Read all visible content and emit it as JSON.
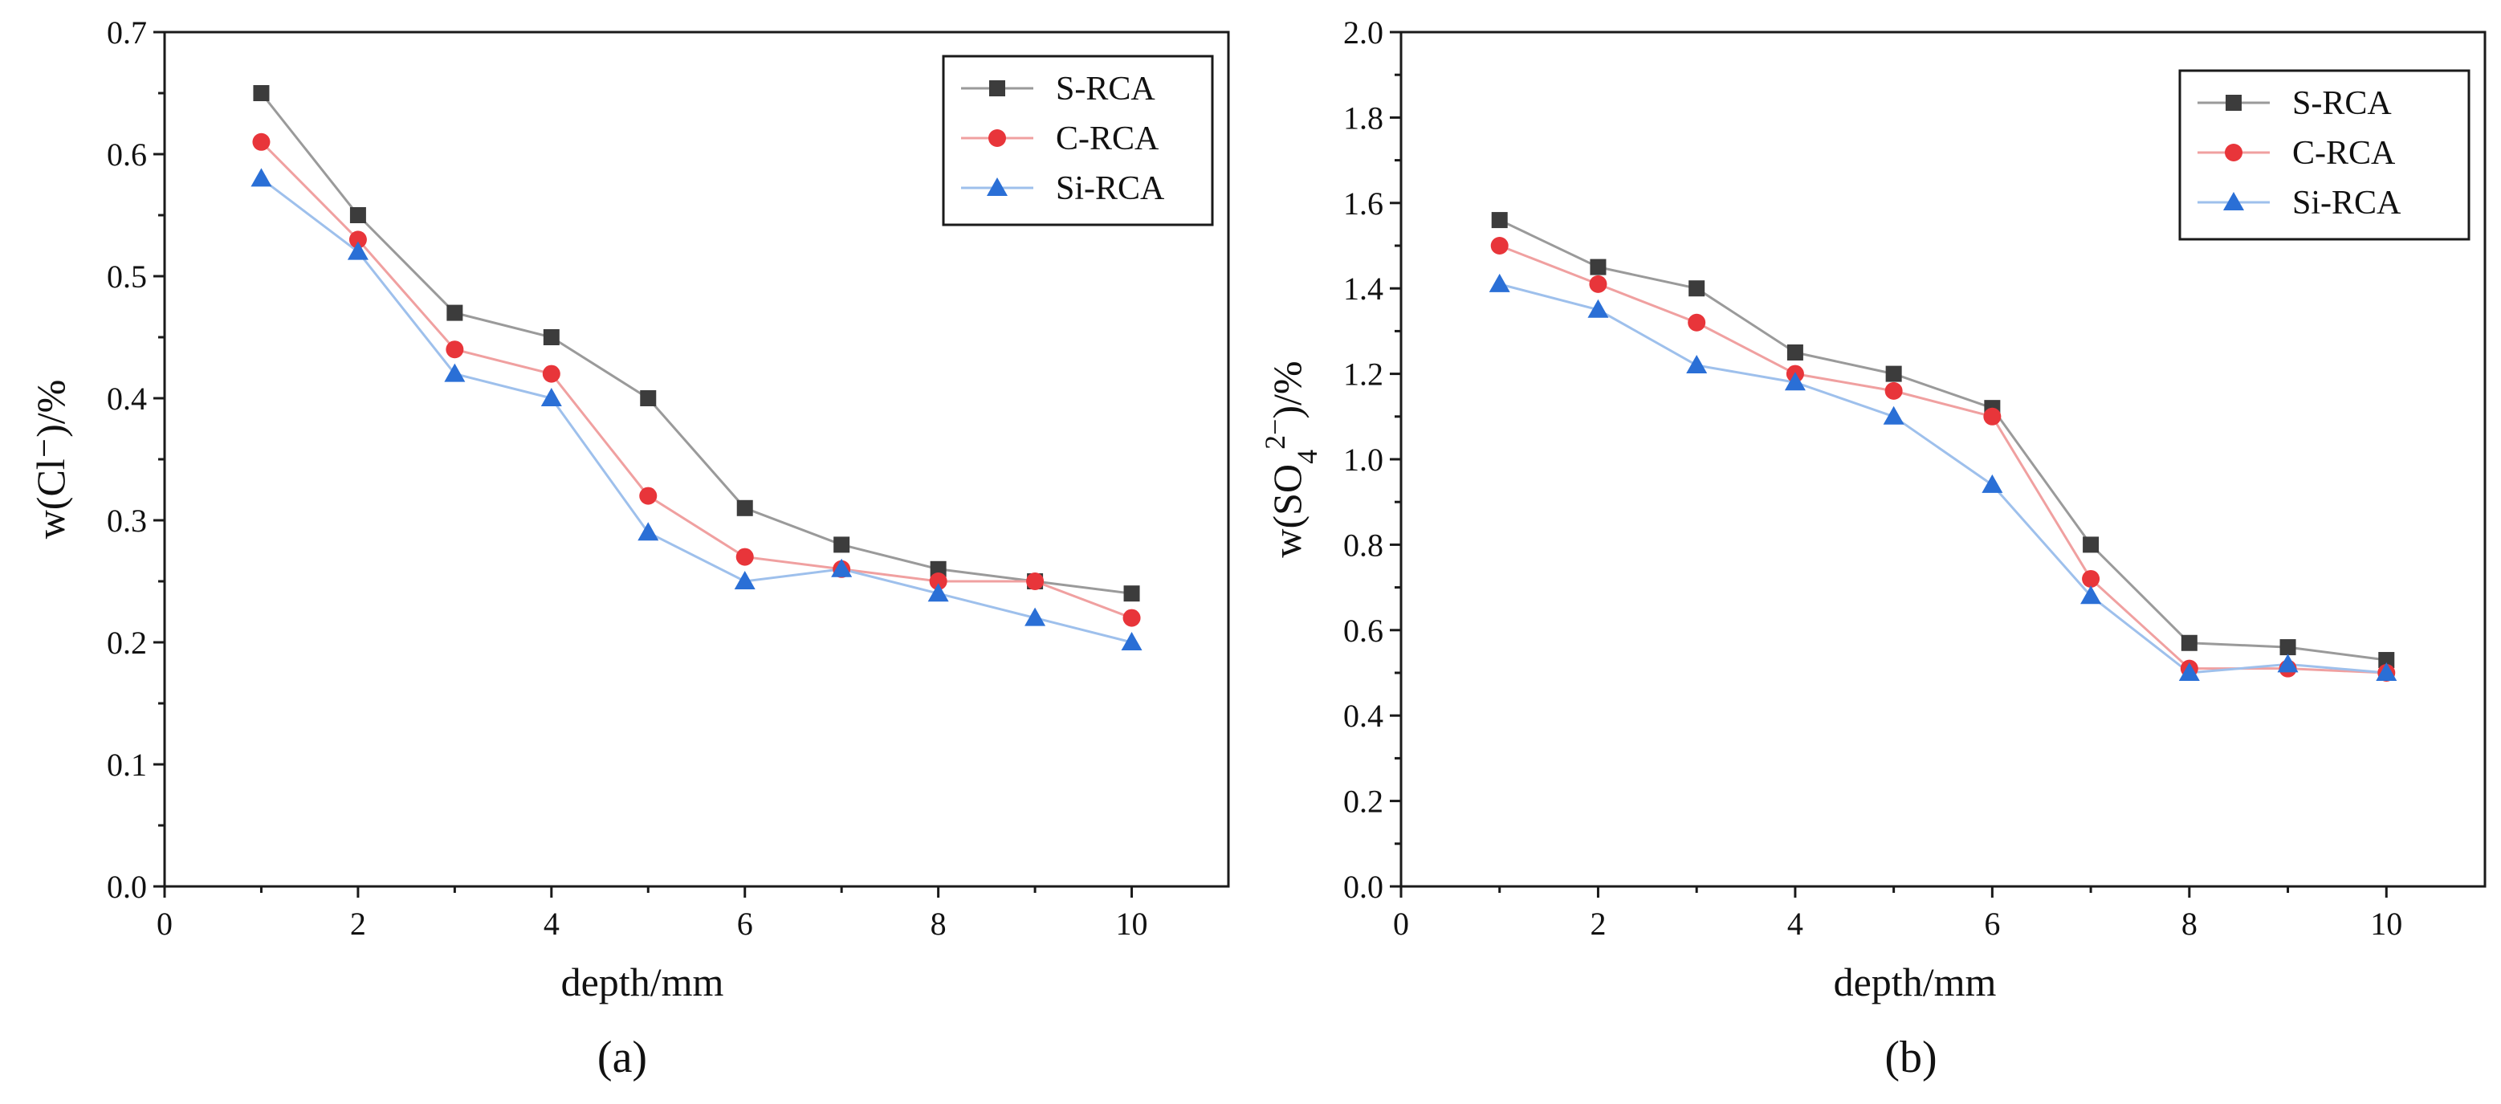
{
  "chart_data": [
    {
      "type": "line",
      "caption": "(a)",
      "xlabel": "depth/mm",
      "ylabel": "w(Cl⁻)/%",
      "xlim": [
        0,
        11
      ],
      "ylim": [
        0,
        0.7
      ],
      "xticks": [
        0,
        2,
        4,
        6,
        8,
        10
      ],
      "xtick_labels": [
        "0",
        "2",
        "4",
        "6",
        "8",
        "10"
      ],
      "yticks": [
        0,
        0.1,
        0.2,
        0.3,
        0.4,
        0.5,
        0.6,
        0.7
      ],
      "ytick_labels": [
        "0.0",
        "0.1",
        "0.2",
        "0.3",
        "0.4",
        "0.5",
        "0.6",
        "0.7"
      ],
      "legend_position": "top-right",
      "x": [
        1,
        2,
        3,
        4,
        5,
        6,
        7,
        8,
        9,
        10
      ],
      "series": [
        {
          "name": "S-RCA",
          "color": "#3c3c3c",
          "line_color": "#9a9a9a",
          "marker": "square",
          "values": [
            0.65,
            0.55,
            0.47,
            0.45,
            0.4,
            0.31,
            0.28,
            0.26,
            0.25,
            0.24
          ]
        },
        {
          "name": "C-RCA",
          "color": "#e8353a",
          "line_color": "#f0a0a0",
          "marker": "circle",
          "values": [
            0.61,
            0.53,
            0.44,
            0.42,
            0.32,
            0.27,
            0.26,
            0.25,
            0.25,
            0.22
          ]
        },
        {
          "name": "Si-RCA",
          "color": "#2a6fd6",
          "line_color": "#9ec0ec",
          "marker": "triangle",
          "values": [
            0.58,
            0.52,
            0.42,
            0.4,
            0.29,
            0.25,
            0.26,
            0.24,
            0.22,
            0.2
          ]
        }
      ]
    },
    {
      "type": "line",
      "caption": "(b)",
      "xlabel": "depth/mm",
      "ylabel": "w(SO",
      "ylabel_sub": "4",
      "ylabel_sup": "2−",
      "ylabel_end": ")/%",
      "xlim": [
        0,
        11
      ],
      "ylim": [
        0,
        2.0
      ],
      "xticks": [
        0,
        2,
        4,
        6,
        8,
        10
      ],
      "xtick_labels": [
        "0",
        "2",
        "4",
        "6",
        "8",
        "10"
      ],
      "yticks": [
        0,
        0.2,
        0.4,
        0.6,
        0.8,
        1.0,
        1.2,
        1.4,
        1.6,
        1.8,
        2.0
      ],
      "ytick_labels": [
        "0.0",
        "0.2",
        "0.4",
        "0.6",
        "0.8",
        "1.0",
        "1.2",
        "1.4",
        "1.6",
        "1.8",
        "2.0"
      ],
      "legend_position": "top-right",
      "x": [
        1,
        2,
        3,
        4,
        5,
        6,
        7,
        8,
        9,
        10
      ],
      "series": [
        {
          "name": "S-RCA",
          "color": "#3c3c3c",
          "line_color": "#9a9a9a",
          "marker": "square",
          "values": [
            1.56,
            1.45,
            1.4,
            1.25,
            1.2,
            1.12,
            0.8,
            0.57,
            0.56,
            0.53
          ]
        },
        {
          "name": "C-RCA",
          "color": "#e8353a",
          "line_color": "#f0a0a0",
          "marker": "circle",
          "values": [
            1.5,
            1.41,
            1.32,
            1.2,
            1.16,
            1.1,
            0.72,
            0.51,
            0.51,
            0.5
          ]
        },
        {
          "name": "Si-RCA",
          "color": "#2a6fd6",
          "line_color": "#9ec0ec",
          "marker": "triangle",
          "values": [
            1.41,
            1.35,
            1.22,
            1.18,
            1.1,
            0.94,
            0.68,
            0.5,
            0.52,
            0.5
          ]
        }
      ]
    }
  ]
}
